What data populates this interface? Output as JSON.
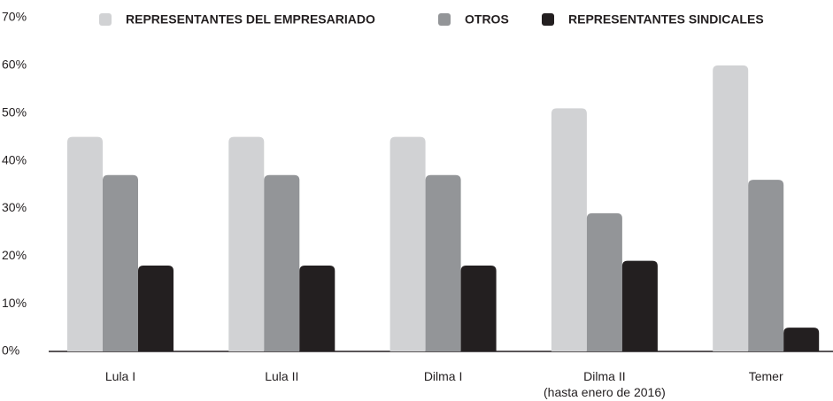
{
  "chart_data": {
    "type": "bar",
    "categories": [
      "Lula I",
      "Lula II",
      "Dilma I",
      "Dilma II\n(hasta enero de 2016)",
      "Temer"
    ],
    "series": [
      {
        "name": "REPRESENTANTES DEL EMPRESARIADO",
        "color": "#d1d2d4",
        "values": [
          45,
          45,
          45,
          51,
          60
        ]
      },
      {
        "name": "OTROS",
        "color": "#939598",
        "values": [
          37,
          37,
          37,
          29,
          36
        ]
      },
      {
        "name": "REPRESENTANTES SINDICALES",
        "color": "#231f20",
        "values": [
          18,
          18,
          18,
          19,
          5
        ]
      }
    ],
    "ylim": [
      0,
      70
    ],
    "yticks": [
      {
        "value": 0,
        "label": "0%"
      },
      {
        "value": 10,
        "label": "10%"
      },
      {
        "value": 20,
        "label": "20%"
      },
      {
        "value": 30,
        "label": "30%"
      },
      {
        "value": 40,
        "label": "40%"
      },
      {
        "value": 50,
        "label": "50%"
      },
      {
        "value": 60,
        "label": "60%"
      },
      {
        "value": 70,
        "label": "70%"
      }
    ],
    "legend": "top",
    "grid": false
  }
}
